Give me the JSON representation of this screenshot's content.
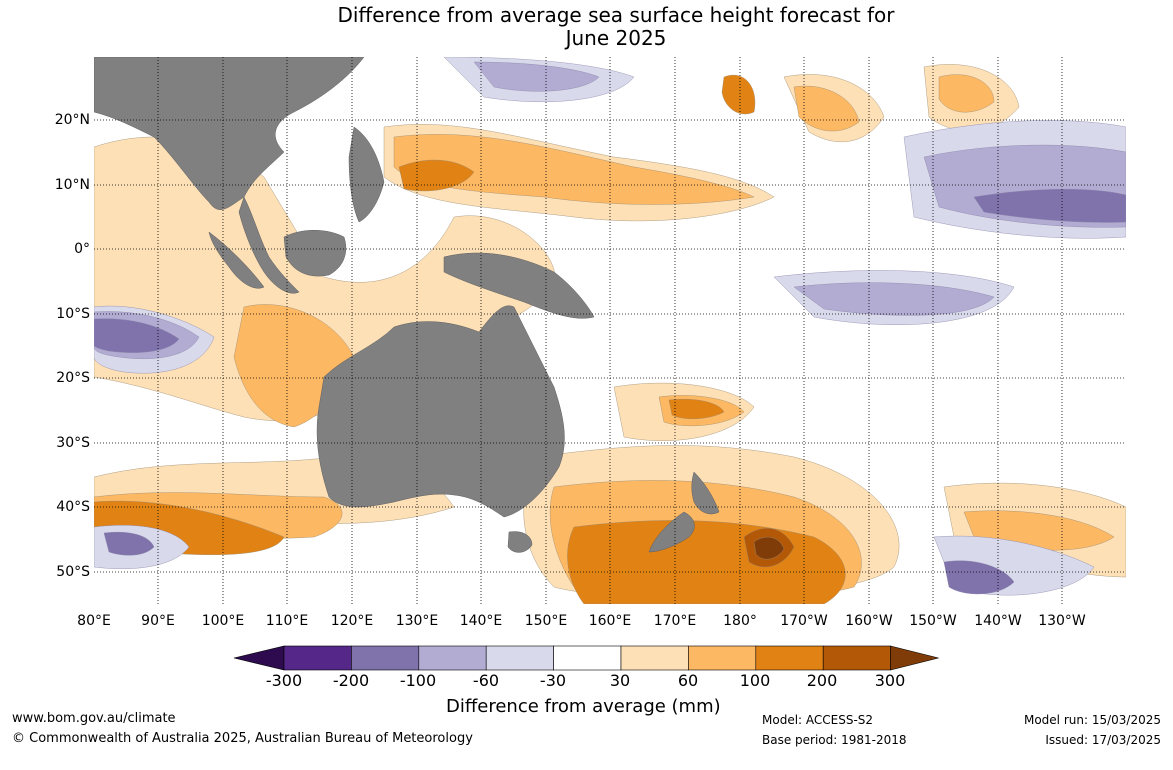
{
  "title": {
    "line1": "Difference from average sea surface height forecast for",
    "line2": "June 2025"
  },
  "lat_ticks": [
    "20°N",
    "10°N",
    "0°",
    "10°S",
    "20°S",
    "30°S",
    "40°S",
    "50°S"
  ],
  "lon_ticks": [
    "80°E",
    "90°E",
    "100°E",
    "110°E",
    "120°E",
    "130°E",
    "140°E",
    "150°E",
    "160°E",
    "170°E",
    "180°",
    "170°W",
    "160°W",
    "150°W",
    "140°W",
    "130°W"
  ],
  "colorbar": {
    "label": "Difference from average (mm)",
    "ticks": [
      "-300",
      "-200",
      "-100",
      "-60",
      "-30",
      "30",
      "60",
      "100",
      "200",
      "300"
    ],
    "colors": [
      "#2d0b4e",
      "#542788",
      "#8073ac",
      "#b2abd2",
      "#d8daeb",
      "#ffffff",
      "#fee0b6",
      "#fdb863",
      "#e08214",
      "#b35806",
      "#7f3b08"
    ]
  },
  "footer": {
    "website": "www.bom.gov.au/climate",
    "copyright": "© Commonwealth of Australia 2025, Australian Bureau of Meteorology",
    "model": "Model: ACCESS-S2",
    "base_period": "Base period: 1981-2018",
    "model_run": "Model run: 15/03/2025",
    "issued": "Issued: 17/03/2025"
  }
}
